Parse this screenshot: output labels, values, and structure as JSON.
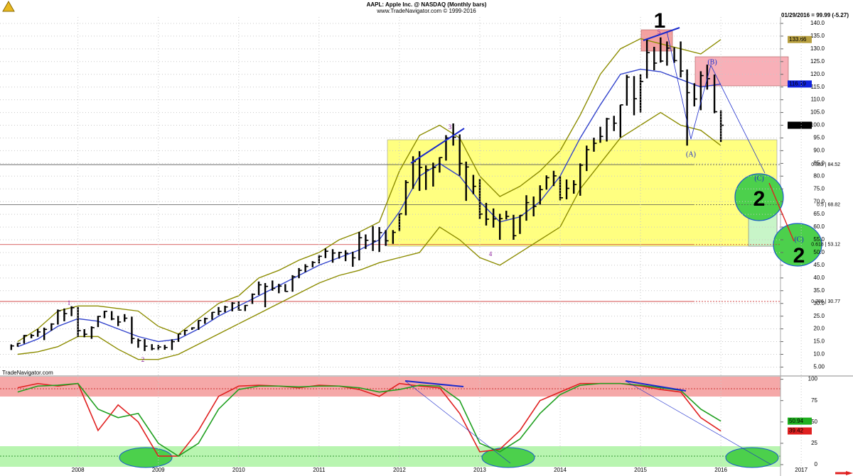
{
  "header": {
    "title": "AAPL: Apple Inc. @ NASDAQ  (Monthly bars)",
    "subtitle": "www.TradeNavigator.com © 1999-2016",
    "quote": "01/29/2016 = 99.99 (-5.27)",
    "watermark": "TradeNavigator.com"
  },
  "chart_data": [
    {
      "type": "ohlc",
      "bar_color": "#000000",
      "x": [
        2007.17,
        2007.25,
        2007.33,
        2007.42,
        2007.5,
        2007.58,
        2007.67,
        2007.75,
        2007.83,
        2007.92,
        2008,
        2008.08,
        2008.17,
        2008.25,
        2008.33,
        2008.42,
        2008.5,
        2008.58,
        2008.67,
        2008.75,
        2008.83,
        2008.92,
        2009,
        2009.08,
        2009.17,
        2009.25,
        2009.33,
        2009.42,
        2009.5,
        2009.58,
        2009.67,
        2009.75,
        2009.83,
        2009.92,
        2010,
        2010.08,
        2010.17,
        2010.25,
        2010.33,
        2010.42,
        2010.5,
        2010.58,
        2010.67,
        2010.75,
        2010.83,
        2010.92,
        2011,
        2011.08,
        2011.17,
        2011.25,
        2011.33,
        2011.42,
        2011.5,
        2011.58,
        2011.67,
        2011.75,
        2011.83,
        2011.92,
        2012,
        2012.08,
        2012.17,
        2012.25,
        2012.33,
        2012.42,
        2012.5,
        2012.58,
        2012.67,
        2012.75,
        2012.83,
        2012.92,
        2013,
        2013.08,
        2013.17,
        2013.25,
        2013.33,
        2013.42,
        2013.5,
        2013.58,
        2013.67,
        2013.75,
        2013.83,
        2013.92,
        2014,
        2014.08,
        2014.17,
        2014.25,
        2014.33,
        2014.42,
        2014.5,
        2014.58,
        2014.67,
        2014.75,
        2014.83,
        2014.92,
        2015,
        2015.08,
        2015.17,
        2015.25,
        2015.33,
        2015.42,
        2015.5,
        2015.58,
        2015.67,
        2015.75,
        2015.83,
        2015.92,
        2016
      ],
      "high": [
        13.9,
        14.5,
        17.6,
        18.0,
        20.0,
        20.5,
        22.2,
        27.6,
        28.0,
        28.9,
        28.6,
        19.9,
        21.0,
        25.1,
        27.1,
        27.0,
        25.1,
        25.8,
        24.8,
        16.2,
        16.0,
        14.0,
        13.7,
        13.7,
        15.9,
        18.0,
        19.6,
        20.6,
        23.4,
        24.4,
        26.6,
        28.6,
        29.1,
        30.5,
        30.8,
        29.4,
        33.9,
        38.6,
        38.0,
        39.0,
        37.7,
        37.6,
        41.1,
        43.9,
        45.4,
        46.6,
        49.0,
        51.6,
        51.3,
        50.3,
        50.9,
        50.3,
        58.1,
        57.1,
        60.4,
        60.0,
        58.8,
        58.8,
        65.2,
        78.4,
        87.8,
        89.8,
        84.2,
        85.3,
        87.4,
        96.1,
        100.7,
        96.4,
        85.7,
        80.5,
        78.9,
        69.5,
        67.3,
        65.2,
        66.4,
        64.8,
        64.7,
        72.5,
        72.0,
        76.4,
        80.3,
        82.1,
        80.1,
        78.7,
        78.4,
        85.0,
        92.0,
        95.1,
        99.4,
        102.9,
        103.7,
        108.0,
        119.8,
        119.3,
        120.0,
        133.6,
        130.8,
        134.5,
        132.9,
        130.6,
        132.9,
        121.9,
        116.5,
        121.2,
        123.8,
        119.9,
        105.9
      ],
      "low": [
        11.7,
        13.0,
        14.2,
        16.3,
        16.9,
        15.6,
        19.3,
        21.7,
        23.0,
        25.0,
        16.9,
        16.7,
        16.1,
        20.7,
        24.2,
        23.4,
        21.1,
        22.8,
        14.2,
        12.6,
        11.3,
        11.6,
        11.7,
        11.8,
        11.7,
        14.9,
        17.5,
        19.6,
        19.6,
        22.0,
        23.6,
        25.4,
        26.5,
        26.9,
        27.2,
        27.0,
        29.8,
        33.3,
        28.5,
        35.0,
        34.0,
        34.6,
        34.6,
        39.9,
        42.3,
        44.2,
        45.7,
        47.8,
        46.0,
        47.6,
        46.6,
        44.4,
        46.9,
        51.4,
        50.6,
        50.2,
        52.6,
        53.4,
        58.4,
        64.6,
        75.0,
        74.2,
        74.6,
        75.9,
        81.4,
        86.1,
        92.0,
        80.2,
        70.3,
        72.9,
        63.1,
        60.6,
        59.8,
        55.0,
        63.0,
        55.0,
        57.3,
        62.5,
        64.2,
        68.9,
        74.7,
        76.1,
        70.5,
        70.9,
        73.1,
        72.3,
        82.0,
        89.6,
        93.1,
        93.6,
        97.7,
        95.2,
        107.7,
        103.9,
        105.0,
        118.4,
        121.6,
        124.6,
        123.4,
        124.5,
        118.8,
        92.0,
        107.4,
        105.9,
        114.0,
        104.7,
        93.4
      ],
      "close": [
        13.3,
        14.3,
        17.4,
        17.4,
        18.8,
        19.8,
        21.9,
        27.1,
        26.0,
        28.3,
        19.3,
        17.9,
        20.5,
        24.9,
        26.9,
        23.9,
        22.7,
        24.2,
        16.2,
        15.4,
        13.2,
        12.2,
        12.9,
        12.7,
        15.0,
        18.0,
        19.4,
        20.4,
        23.3,
        24.0,
        26.5,
        26.9,
        28.6,
        30.1,
        27.4,
        29.2,
        33.6,
        37.3,
        36.7,
        35.9,
        36.8,
        34.7,
        40.5,
        43.0,
        44.5,
        46.1,
        48.5,
        50.5,
        49.8,
        50.0,
        49.7,
        47.9,
        55.8,
        54.8,
        54.5,
        57.8,
        54.6,
        57.9,
        65.2,
        77.5,
        85.7,
        83.4,
        82.5,
        83.4,
        87.3,
        95.0,
        95.3,
        85.0,
        83.6,
        76.0,
        65.1,
        63.1,
        63.2,
        63.3,
        64.2,
        56.6,
        64.6,
        69.6,
        68.1,
        74.7,
        79.4,
        80.1,
        71.5,
        75.2,
        76.7,
        84.3,
        90.4,
        92.9,
        95.6,
        102.5,
        100.8,
        108.0,
        118.9,
        110.4,
        117.2,
        128.5,
        124.4,
        125.2,
        130.3,
        125.4,
        121.3,
        112.8,
        110.3,
        119.5,
        118.3,
        105.3,
        99.99
      ],
      "band_x": [
        2007.25,
        2007.5,
        2007.75,
        2008,
        2008.25,
        2008.5,
        2008.75,
        2009,
        2009.25,
        2009.5,
        2009.75,
        2010,
        2010.25,
        2010.5,
        2010.75,
        2011,
        2011.25,
        2011.5,
        2011.75,
        2012,
        2012.25,
        2012.5,
        2012.75,
        2013,
        2013.25,
        2013.5,
        2013.75,
        2014,
        2014.25,
        2014.5,
        2014.75,
        2015,
        2015.25,
        2015.5,
        2015.75,
        2016
      ],
      "bands": [
        {
          "color": "#8c8c00",
          "values": [
            15,
            20,
            27,
            29,
            29,
            28,
            27,
            21,
            18,
            24,
            30,
            33,
            40,
            43,
            47,
            50,
            55,
            58,
            62,
            82,
            96,
            100,
            95,
            80,
            72,
            76,
            82,
            90,
            104,
            120,
            130,
            134,
            132,
            130,
            128,
            133.66
          ]
        },
        {
          "color": "#3344cc",
          "values": [
            13,
            16,
            21,
            24,
            23,
            20,
            17,
            15,
            16,
            20,
            25,
            29,
            33,
            37,
            41,
            45,
            48,
            51,
            55,
            66,
            80,
            85,
            80,
            70,
            62,
            64,
            70,
            80,
            95,
            108,
            120,
            122,
            121,
            118,
            115,
            116.19
          ]
        },
        {
          "color": "#8c8c00",
          "values": [
            10,
            11,
            13,
            17,
            17,
            12,
            8,
            8,
            10,
            14,
            18,
            22,
            26,
            30,
            34,
            38,
            41,
            43,
            46,
            48,
            50,
            60,
            55,
            48,
            45,
            50,
            55,
            60,
            75,
            85,
            95,
            100,
            105,
            100,
            98,
            92
          ]
        }
      ],
      "xlim": [
        2007.03,
        2017.6
      ],
      "ylim": [
        1.5,
        142.5
      ],
      "yticks": [
        {
          "value": 5,
          "label": "5.00"
        },
        {
          "value": 10,
          "label": "10.0"
        },
        {
          "value": 15,
          "label": "15.0"
        },
        {
          "value": 20,
          "label": "20.0"
        },
        {
          "value": 25,
          "label": "25.0"
        },
        {
          "value": 30,
          "label": "30.0"
        },
        {
          "value": 35,
          "label": "35.0"
        },
        {
          "value": 40,
          "label": "40.0"
        },
        {
          "value": 45,
          "label": "45.0"
        },
        {
          "value": 50,
          "label": "50.0"
        },
        {
          "value": 55,
          "label": "55.0"
        },
        {
          "value": 60,
          "label": "60.0"
        },
        {
          "value": 65,
          "label": "65.0"
        },
        {
          "value": 70,
          "label": "70.0"
        },
        {
          "value": 75,
          "label": "75.0"
        },
        {
          "value": 80,
          "label": "80.0"
        },
        {
          "value": 85,
          "label": "85.0"
        },
        {
          "value": 90,
          "label": "90.0"
        },
        {
          "value": 95,
          "label": "95.0"
        },
        {
          "value": 100,
          "label": "100.0"
        },
        {
          "value": 105,
          "label": "105.0"
        },
        {
          "value": 110,
          "label": "110.0"
        },
        {
          "value": 115,
          "label": "115.0"
        },
        {
          "value": 120,
          "label": "120.0"
        },
        {
          "value": 125,
          "label": "125.0"
        },
        {
          "value": 130,
          "label": "130.0"
        },
        {
          "value": 135,
          "label": "135.0"
        },
        {
          "value": 140,
          "label": "140.0"
        }
      ],
      "fib_levels": [
        {
          "value": 84.52,
          "label": "0.382 | 84.52",
          "color": "#555555"
        },
        {
          "value": 68.82,
          "label": "0.5 | 68.82",
          "color": "#555555"
        },
        {
          "value": 53.12,
          "label": "0.618 | 53.12",
          "color": "#cc3333"
        },
        {
          "value": 30.77,
          "label": "0.786 | 30.77",
          "color": "#cc3333"
        }
      ],
      "value_tags": [
        {
          "value": 133.66,
          "label": "133.66",
          "color": "#b8a040",
          "text_color": "#000000"
        },
        {
          "value": 116.19,
          "label": "116.19",
          "color": "#1122dd",
          "text_color": "#ffffff"
        },
        {
          "value": 99.99,
          "label": "99.99",
          "color": "#000000",
          "text_color": "#ffffff"
        }
      ],
      "annotations": [
        "1",
        "2",
        "3",
        "4",
        "5",
        "(A)",
        "(B)",
        "(C)",
        "(C)",
        "1",
        "2",
        "2"
      ]
    },
    {
      "type": "line",
      "x": [
        2007.25,
        2007.5,
        2007.75,
        2008,
        2008.25,
        2008.5,
        2008.75,
        2009,
        2009.25,
        2009.5,
        2009.75,
        2010,
        2010.25,
        2010.5,
        2010.75,
        2011,
        2011.25,
        2011.5,
        2011.75,
        2012,
        2012.25,
        2012.5,
        2012.75,
        2013,
        2013.25,
        2013.5,
        2013.75,
        2014,
        2014.25,
        2014.5,
        2014.75,
        2015,
        2015.25,
        2015.5,
        2015.75,
        2016
      ],
      "series": [
        {
          "color": "#e02020",
          "values": [
            90,
            95,
            92,
            95,
            40,
            70,
            50,
            10,
            10,
            40,
            80,
            92,
            93,
            92,
            90,
            93,
            92,
            88,
            80,
            95,
            92,
            90,
            60,
            15,
            18,
            40,
            75,
            85,
            95,
            95,
            95,
            92,
            88,
            85,
            55,
            39.42
          ]
        },
        {
          "color": "#20a020",
          "values": [
            85,
            92,
            93,
            95,
            65,
            55,
            60,
            25,
            10,
            25,
            65,
            88,
            92,
            92,
            91,
            92,
            92,
            90,
            85,
            88,
            93,
            92,
            75,
            25,
            15,
            30,
            60,
            82,
            93,
            95,
            95,
            93,
            90,
            87,
            65,
            50.94
          ]
        }
      ],
      "xlim": [
        2007.03,
        2017.6
      ],
      "ylim": [
        -10,
        103
      ],
      "yticks": [
        0,
        25,
        50,
        75,
        100
      ],
      "xticks": [
        2008,
        2009,
        2010,
        2011,
        2012,
        2013,
        2014,
        2015,
        2016,
        2017
      ],
      "value_tags": [
        {
          "value": 50.94,
          "label": "50.94",
          "color": "#20b020",
          "text_color": "#000000"
        },
        {
          "value": 39.42,
          "label": "39.42",
          "color": "#e02020",
          "text_color": "#ffffff"
        }
      ]
    }
  ]
}
